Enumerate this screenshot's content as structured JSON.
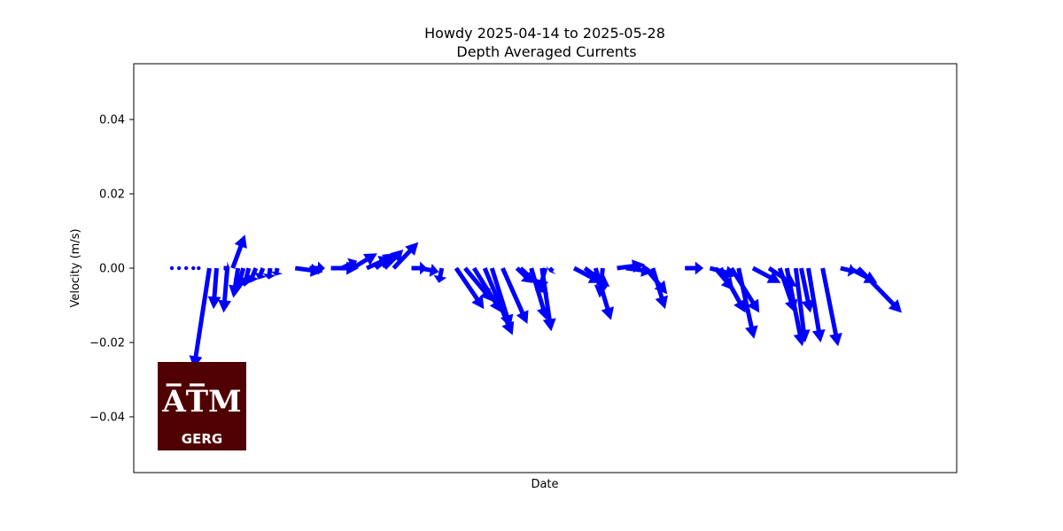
{
  "chart_data": {
    "type": "quiver",
    "title": "Howdy 2025-04-14 to 2025-05-28",
    "subtitle": "Depth Averaged Currents",
    "xlabel": "Date",
    "ylabel": "Velocity (m/s)",
    "ylim": [
      -0.055,
      0.055
    ],
    "yticks": [
      0.04,
      0.02,
      0.0,
      -0.02,
      -0.04
    ],
    "ytick_labels": [
      "0.04",
      "0.02",
      "0.00",
      "−0.02",
      "−0.04"
    ],
    "xlim": [
      0,
      44
    ],
    "grid": false,
    "arrow_color": "#0000ff",
    "vectors": [
      {
        "x": 0.1,
        "u": 0.0,
        "v": 0.0
      },
      {
        "x": 0.5,
        "u": 0.0,
        "v": 0.0
      },
      {
        "x": 0.9,
        "u": 0.0,
        "v": 0.0
      },
      {
        "x": 1.3,
        "u": 0.0,
        "v": 0.0
      },
      {
        "x": 1.6,
        "u": 0.0,
        "v": 0.0
      },
      {
        "x": 2.2,
        "u": -0.5,
        "v": -0.027
      },
      {
        "x": 2.6,
        "u": -0.1,
        "v": -0.011
      },
      {
        "x": 3.0,
        "u": 0.2,
        "v": 0.0
      },
      {
        "x": 3.2,
        "u": -0.12,
        "v": -0.012
      },
      {
        "x": 3.5,
        "u": 0.4,
        "v": 0.009
      },
      {
        "x": 3.8,
        "u": -0.15,
        "v": -0.008
      },
      {
        "x": 4.1,
        "u": -0.2,
        "v": -0.006
      },
      {
        "x": 4.4,
        "u": -0.15,
        "v": -0.005
      },
      {
        "x": 4.8,
        "u": -0.2,
        "v": -0.004
      },
      {
        "x": 5.2,
        "u": -0.15,
        "v": -0.003
      },
      {
        "x": 5.6,
        "u": -0.05,
        "v": -0.003
      },
      {
        "x": 6.0,
        "u": -0.05,
        "v": -0.002
      },
      {
        "x": 7.0,
        "u": 0.9,
        "v": -0.001
      },
      {
        "x": 7.8,
        "u": 0.5,
        "v": 0.0
      },
      {
        "x": 9.0,
        "u": 0.9,
        "v": 0.0
      },
      {
        "x": 9.6,
        "u": 0.5,
        "v": 0.002
      },
      {
        "x": 10.2,
        "u": 0.8,
        "v": 0.004
      },
      {
        "x": 11.0,
        "u": 0.8,
        "v": 0.003
      },
      {
        "x": 11.5,
        "u": 0.6,
        "v": 0.004
      },
      {
        "x": 12.0,
        "u": 0.6,
        "v": 0.005
      },
      {
        "x": 12.5,
        "u": 0.8,
        "v": 0.007
      },
      {
        "x": 13.5,
        "u": 0.5,
        "v": 0.0
      },
      {
        "x": 14.0,
        "u": 0.6,
        "v": -0.001
      },
      {
        "x": 15.2,
        "u": -0.1,
        "v": -0.004
      },
      {
        "x": 16.0,
        "u": 0.9,
        "v": -0.011
      },
      {
        "x": 16.5,
        "u": 0.9,
        "v": -0.009
      },
      {
        "x": 17.0,
        "u": 0.9,
        "v": -0.012
      },
      {
        "x": 17.6,
        "u": 0.9,
        "v": -0.018
      },
      {
        "x": 18.0,
        "u": 0.6,
        "v": -0.016
      },
      {
        "x": 18.6,
        "u": 0.8,
        "v": -0.015
      },
      {
        "x": 19.4,
        "u": 0.5,
        "v": -0.004
      },
      {
        "x": 19.6,
        "u": 0.9,
        "v": -0.007
      },
      {
        "x": 20.2,
        "u": 0.5,
        "v": -0.014
      },
      {
        "x": 20.8,
        "u": 0.3,
        "v": -0.017
      },
      {
        "x": 21.0,
        "u": -0.2,
        "v": -0.006
      },
      {
        "x": 21.4,
        "u": -0.1,
        "v": -0.001
      },
      {
        "x": 22.6,
        "u": 0.9,
        "v": -0.004
      },
      {
        "x": 23.2,
        "u": 0.8,
        "v": -0.005
      },
      {
        "x": 23.8,
        "u": 0.5,
        "v": -0.014
      },
      {
        "x": 24.2,
        "u": -0.1,
        "v": -0.008
      },
      {
        "x": 25.0,
        "u": 0.9,
        "v": 0.001
      },
      {
        "x": 25.5,
        "u": 0.9,
        "v": -0.001
      },
      {
        "x": 26.6,
        "u": 0.7,
        "v": -0.007
      },
      {
        "x": 27.0,
        "u": 0.4,
        "v": -0.011
      },
      {
        "x": 28.8,
        "u": 0.6,
        "v": 0.0
      },
      {
        "x": 30.2,
        "u": 0.9,
        "v": -0.002
      },
      {
        "x": 30.5,
        "u": 0.6,
        "v": -0.006
      },
      {
        "x": 30.8,
        "u": 0.8,
        "v": -0.012
      },
      {
        "x": 31.4,
        "u": 0.9,
        "v": -0.012
      },
      {
        "x": 31.8,
        "u": 0.5,
        "v": -0.019
      },
      {
        "x": 32.6,
        "u": 0.9,
        "v": -0.004
      },
      {
        "x": 33.5,
        "u": 0.9,
        "v": -0.005
      },
      {
        "x": 34.1,
        "u": 0.5,
        "v": -0.012
      },
      {
        "x": 34.5,
        "u": 0.5,
        "v": -0.021
      },
      {
        "x": 35.0,
        "u": 0.3,
        "v": -0.02
      },
      {
        "x": 35.3,
        "u": 0.3,
        "v": -0.012
      },
      {
        "x": 35.7,
        "u": 0.4,
        "v": -0.02
      },
      {
        "x": 36.5,
        "u": 0.5,
        "v": -0.021
      },
      {
        "x": 37.5,
        "u": 0.5,
        "v": -0.001
      },
      {
        "x": 38.0,
        "u": 0.9,
        "v": -0.004
      },
      {
        "x": 38.5,
        "u": 1.4,
        "v": -0.012
      }
    ]
  },
  "logo": {
    "mark": "A̅T̅M",
    "label": "GERG",
    "background": "#500000",
    "foreground": "#ffffff"
  }
}
